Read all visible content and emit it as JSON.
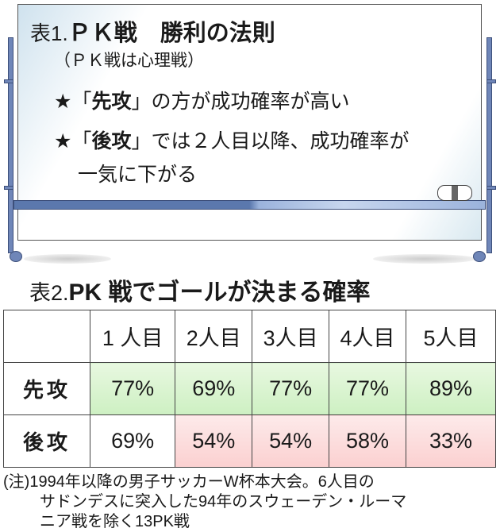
{
  "board": {
    "title_prefix": "表1.",
    "title": "ＰＫ戦　勝利の法則",
    "subtitle": "（ＰＫ戦は心理戦）",
    "points": [
      {
        "star": "★",
        "open": "「",
        "key": "先攻",
        "close": "」",
        "rest": "の方が成功確率が高い"
      },
      {
        "star": "★",
        "open": "「",
        "key": "後攻",
        "close": "」",
        "rest": "では２人目以降、成功確率が",
        "rest2": "一気に下がる"
      }
    ]
  },
  "table": {
    "title_prefix": "表2.",
    "title": "PK 戦でゴールが決まる確率",
    "headers": [
      "",
      "1 人目",
      "2人目",
      "3人目",
      "4人目",
      "5人目"
    ],
    "rows": [
      {
        "label": "先攻",
        "values": [
          "77%",
          "69%",
          "77%",
          "77%",
          "89%"
        ]
      },
      {
        "label": "後攻",
        "values": [
          "69%",
          "54%",
          "54%",
          "58%",
          "33%"
        ]
      }
    ],
    "colors": {
      "high": "#d6f3cc",
      "low": "#fbd9d9"
    }
  },
  "note": {
    "line1": "(注)1994年以降の男子サッカーW杯本大会。6人目の",
    "line2": "サドンデスに突入した94年のスウェーデン・ルーマ",
    "line3": "ニア戦を除く13PK戦"
  }
}
